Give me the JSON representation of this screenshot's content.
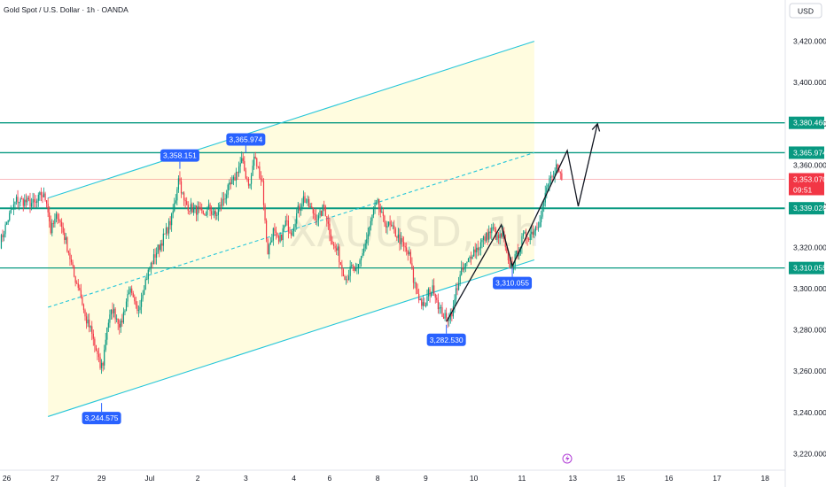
{
  "header": {
    "title": "Gold Spot / U.S. Dollar · 1h · OANDA",
    "currency": "USD",
    "watermark": "XAUUSD, 1h"
  },
  "colors": {
    "up": "#089981",
    "down": "#f23645",
    "channel": "#26c6da",
    "level": "#089981",
    "fill": "#fff9c4",
    "marker": "#2962ff",
    "current": "#f23645"
  },
  "chart_data": {
    "type": "candlestick",
    "ylim": [
      3212,
      3428
    ],
    "y_ticks": [
      3220,
      3240,
      3260,
      3280,
      3300,
      3320,
      3340,
      3360,
      3380,
      3400,
      3420
    ],
    "y_tick_labels": [
      "3,220.000",
      "3,240.000",
      "3,260.000",
      "3,280.000",
      "3,300.000",
      "3,320.000",
      "3,340.000",
      "3,360.000",
      "3,380.000",
      "3,400.000",
      "3,420.000"
    ],
    "x_ticks": [
      {
        "label": "26",
        "i": -37
      },
      {
        "label": "27",
        "i": -2
      },
      {
        "label": "29",
        "i": 32
      },
      {
        "label": "Jul",
        "i": 67
      },
      {
        "label": "2",
        "i": 102
      },
      {
        "label": "3",
        "i": 137
      },
      {
        "label": "4",
        "i": 172
      },
      {
        "label": "6",
        "i": 198
      },
      {
        "label": "8",
        "i": 233
      },
      {
        "label": "9",
        "i": 268
      },
      {
        "label": "10",
        "i": 303
      },
      {
        "label": "11",
        "i": 338
      },
      {
        "label": "13",
        "i": 375
      },
      {
        "label": "15",
        "i": 410
      },
      {
        "label": "16",
        "i": 445
      },
      {
        "label": "17",
        "i": 480
      },
      {
        "label": "18",
        "i": 515
      }
    ],
    "path_keypoints": [
      [
        -42,
        3322
      ],
      [
        -36,
        3334
      ],
      [
        -30,
        3343
      ],
      [
        -22,
        3342
      ],
      [
        -16,
        3341
      ],
      [
        -12,
        3346
      ],
      [
        -8,
        3343
      ],
      [
        -5,
        3328
      ],
      [
        0,
        3336
      ],
      [
        3,
        3330
      ],
      [
        8,
        3318
      ],
      [
        12,
        3306
      ],
      [
        16,
        3300
      ],
      [
        20,
        3286
      ],
      [
        24,
        3280
      ],
      [
        28,
        3270
      ],
      [
        31,
        3262
      ],
      [
        33,
        3264
      ],
      [
        36,
        3282
      ],
      [
        40,
        3290
      ],
      [
        46,
        3282
      ],
      [
        52,
        3300
      ],
      [
        58,
        3288
      ],
      [
        63,
        3302
      ],
      [
        67,
        3310
      ],
      [
        72,
        3318
      ],
      [
        78,
        3326
      ],
      [
        83,
        3334
      ],
      [
        86,
        3344
      ],
      [
        88,
        3355
      ],
      [
        92,
        3342
      ],
      [
        97,
        3339
      ],
      [
        102,
        3338
      ],
      [
        106,
        3335
      ],
      [
        110,
        3339
      ],
      [
        115,
        3335
      ],
      [
        119,
        3341
      ],
      [
        124,
        3348
      ],
      [
        128,
        3352
      ],
      [
        131,
        3358
      ],
      [
        134,
        3362
      ],
      [
        137,
        3355
      ],
      [
        140,
        3350
      ],
      [
        143,
        3364
      ],
      [
        146,
        3358
      ],
      [
        149,
        3352
      ],
      [
        151,
        3332
      ],
      [
        153,
        3318
      ],
      [
        157,
        3328
      ],
      [
        161,
        3322
      ],
      [
        166,
        3332
      ],
      [
        170,
        3328
      ],
      [
        175,
        3338
      ],
      [
        179,
        3344
      ],
      [
        183,
        3340
      ],
      [
        186,
        3337
      ],
      [
        190,
        3334
      ],
      [
        194,
        3340
      ],
      [
        198,
        3328
      ],
      [
        201,
        3320
      ],
      [
        204,
        3318
      ],
      [
        206,
        3312
      ],
      [
        210,
        3305
      ],
      [
        214,
        3310
      ],
      [
        218,
        3308
      ],
      [
        222,
        3318
      ],
      [
        226,
        3326
      ],
      [
        230,
        3338
      ],
      [
        233,
        3341
      ],
      [
        237,
        3333
      ],
      [
        242,
        3330
      ],
      [
        247,
        3326
      ],
      [
        252,
        3320
      ],
      [
        256,
        3316
      ],
      [
        259,
        3304
      ],
      [
        263,
        3296
      ],
      [
        267,
        3290
      ],
      [
        270,
        3298
      ],
      [
        274,
        3300
      ],
      [
        278,
        3290
      ],
      [
        283,
        3285
      ],
      [
        288,
        3290
      ],
      [
        290,
        3299
      ],
      [
        294,
        3308
      ],
      [
        298,
        3312
      ],
      [
        302,
        3318
      ],
      [
        306,
        3320
      ],
      [
        309,
        3323
      ],
      [
        313,
        3326
      ],
      [
        317,
        3329
      ],
      [
        320,
        3324
      ],
      [
        324,
        3326
      ],
      [
        328,
        3312
      ],
      [
        331,
        3311
      ],
      [
        335,
        3318
      ],
      [
        339,
        3325
      ],
      [
        343,
        3326
      ],
      [
        346,
        3328
      ],
      [
        350,
        3332
      ],
      [
        354,
        3342
      ],
      [
        356,
        3348
      ],
      [
        359,
        3355
      ],
      [
        361,
        3352
      ],
      [
        363,
        3358
      ],
      [
        365,
        3356
      ],
      [
        367,
        3353
      ]
    ],
    "channel": {
      "upper": [
        [
          -7,
          3344
        ],
        [
          347,
          3420
        ]
      ],
      "lower": [
        [
          -7,
          3238
        ],
        [
          347,
          3314
        ]
      ],
      "middle": [
        [
          -7,
          3291
        ],
        [
          347,
          3366
        ]
      ]
    },
    "horizontal_levels": [
      {
        "value": 3380.46,
        "label": "3,380.460"
      },
      {
        "value": 3365.974,
        "label": "3,365.974"
      },
      {
        "value": 3339.028,
        "label": "3,339.028"
      },
      {
        "value": 3310.055,
        "label": "3,310.055"
      }
    ],
    "current_price": {
      "value": 3353.07,
      "label": "3,353.070",
      "countdown": "09:51"
    },
    "markers": [
      {
        "i": 89,
        "value": 3358.151,
        "label": "3,358.151",
        "pos": "above"
      },
      {
        "i": 137,
        "value": 3365.974,
        "label": "3,365.974",
        "pos": "above"
      },
      {
        "i": 32,
        "value": 3244.575,
        "label": "3,244.575",
        "pos": "below"
      },
      {
        "i": 283,
        "value": 3282.53,
        "label": "3,282.530",
        "pos": "below"
      },
      {
        "i": 331,
        "value": 3310.055,
        "label": "3,310.055",
        "pos": "below"
      }
    ],
    "projection_path": [
      [
        283,
        3284
      ],
      [
        323,
        3331
      ],
      [
        331,
        3311
      ],
      [
        371,
        3367
      ],
      [
        379,
        3340
      ],
      [
        393,
        3380
      ]
    ]
  }
}
